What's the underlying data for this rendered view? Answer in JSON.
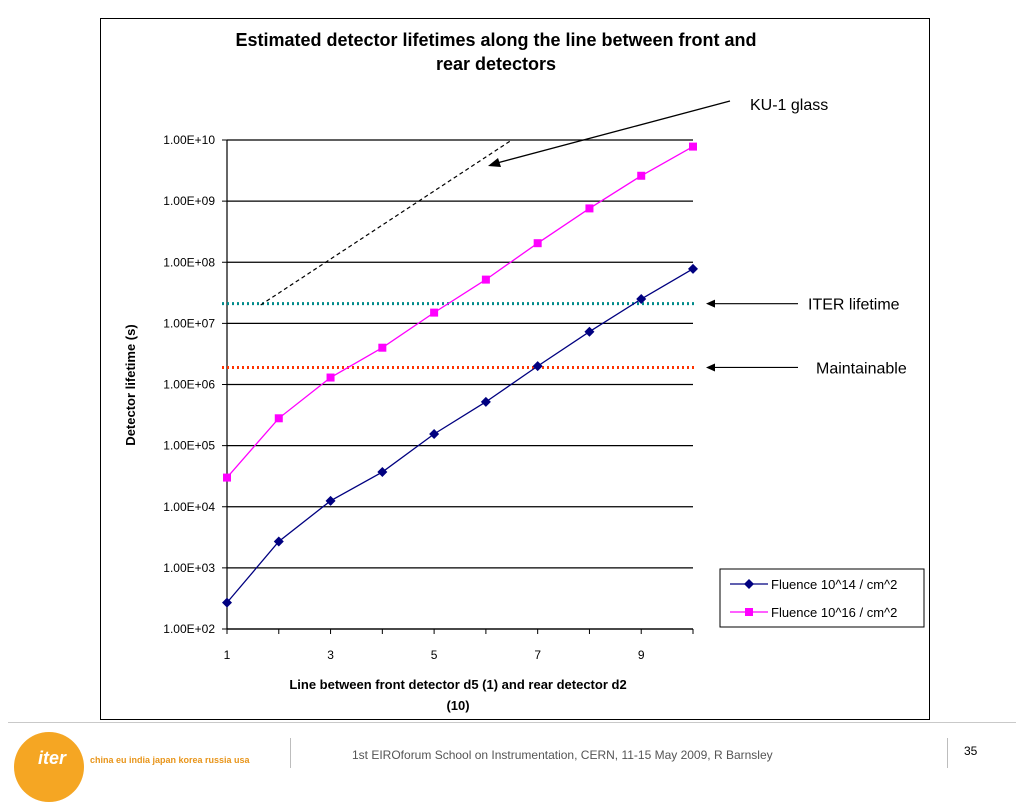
{
  "chart_data": {
    "type": "line",
    "title": "Estimated detector lifetimes along the line between front and rear detectors",
    "title_lines": [
      "Estimated detector lifetimes along the line between front and",
      "rear detectors"
    ],
    "xlabel_lines": [
      "Line between front detector d5 (1) and rear detector d2",
      "(10)"
    ],
    "ylabel": "Detector lifetime (s)",
    "y_scale": "log",
    "ylim": [
      100,
      10000000000
    ],
    "xlim": [
      1,
      10
    ],
    "y_ticks": [
      {
        "value": 100,
        "label": "1.00E+02"
      },
      {
        "value": 1000,
        "label": "1.00E+03"
      },
      {
        "value": 10000,
        "label": "1.00E+04"
      },
      {
        "value": 100000,
        "label": "1.00E+05"
      },
      {
        "value": 1000000,
        "label": "1.00E+06"
      },
      {
        "value": 10000000,
        "label": "1.00E+07"
      },
      {
        "value": 100000000,
        "label": "1.00E+08"
      },
      {
        "value": 1000000000,
        "label": "1.00E+09"
      },
      {
        "value": 10000000000,
        "label": "1.00E+10"
      }
    ],
    "x_ticks": [
      {
        "value": 1,
        "label": "1"
      },
      {
        "value": 3,
        "label": "3"
      },
      {
        "value": 5,
        "label": "5"
      },
      {
        "value": 7,
        "label": "7"
      },
      {
        "value": 9,
        "label": "9"
      }
    ],
    "grid": "horizontal",
    "legend_position": "bottom-right",
    "series": [
      {
        "name": "Fluence 10^14 / cm^2",
        "color": "#000080",
        "marker": "diamond",
        "x": [
          1,
          2,
          3,
          4,
          5,
          6,
          7,
          8,
          9,
          10
        ],
        "y": [
          270,
          2700,
          12500,
          37000,
          155000,
          520000,
          2000000,
          7300000,
          25000000,
          78000000
        ]
      },
      {
        "name": "Fluence 10^16 / cm^2",
        "color": "#ff00ff",
        "marker": "square",
        "x": [
          1,
          2,
          3,
          4,
          5,
          6,
          7,
          8,
          9,
          10
        ],
        "y": [
          30000,
          280000,
          1300000,
          4000000,
          15000000,
          52000000,
          205000000,
          760000000,
          2600000000,
          7800000000
        ]
      }
    ],
    "reference_lines": [
      {
        "label": "ITER lifetime",
        "value": 21000000,
        "color": "#008b8b",
        "style": "dotted"
      },
      {
        "label": "Maintainable",
        "value": 1900000,
        "color": "#ff3300",
        "style": "dotted"
      }
    ],
    "annotations": [
      {
        "label": "KU-1 glass",
        "style": "dashed",
        "x": [
          1.65,
          6.5
        ],
        "y": [
          20000000,
          10000000000
        ]
      }
    ]
  },
  "footer": {
    "logo_text": "iter",
    "logo_tagline": "china eu india japan korea russia usa",
    "text": "1st EIROforum School on Instrumentation, CERN, 11-15 May 2009, R Barnsley",
    "page_number": "35"
  },
  "colors": {
    "logo": "#f5a623",
    "tagline": "#e8951a"
  }
}
